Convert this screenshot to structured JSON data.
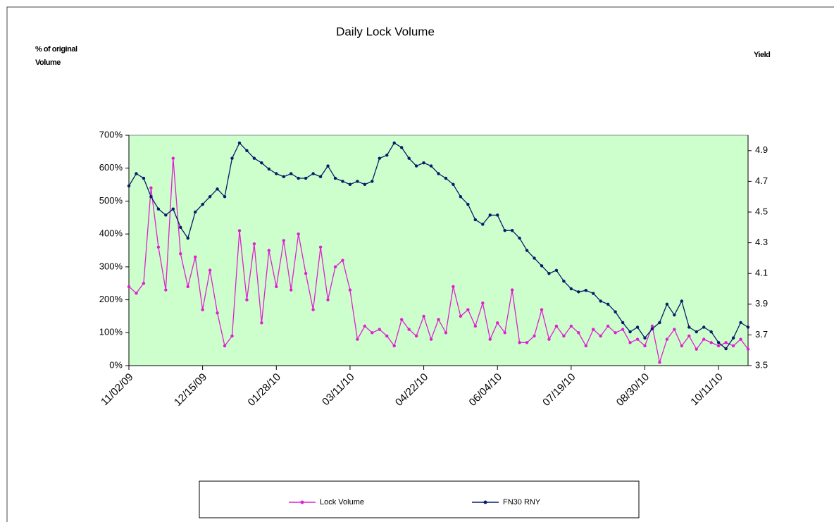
{
  "chart_data": {
    "type": "line",
    "title": "Daily Lock Volume",
    "ylabel": "% of original Volume",
    "y2label": "Yield",
    "categories": [
      "11/02/09",
      null,
      null,
      null,
      null,
      null,
      null,
      null,
      null,
      null,
      "12/15/09",
      null,
      null,
      null,
      null,
      null,
      null,
      null,
      null,
      null,
      "01/28/10",
      null,
      null,
      null,
      null,
      null,
      null,
      null,
      null,
      null,
      "03/11/10",
      null,
      null,
      null,
      null,
      null,
      null,
      null,
      null,
      null,
      "04/22/10",
      null,
      null,
      null,
      null,
      null,
      null,
      null,
      null,
      null,
      "06/04/10",
      null,
      null,
      null,
      null,
      null,
      null,
      null,
      null,
      null,
      "07/19/10",
      null,
      null,
      null,
      null,
      null,
      null,
      null,
      null,
      null,
      "08/30/10",
      null,
      null,
      null,
      null,
      null,
      null,
      null,
      null,
      null,
      "10/11/10",
      null,
      null,
      null,
      null
    ],
    "series": [
      {
        "name": "Lock Volume",
        "color": "#e020d0",
        "axis": "y",
        "values": [
          240,
          220,
          250,
          540,
          360,
          230,
          630,
          340,
          240,
          330,
          170,
          290,
          160,
          60,
          90,
          410,
          200,
          370,
          130,
          350,
          240,
          380,
          230,
          400,
          280,
          170,
          360,
          200,
          300,
          320,
          230,
          80,
          120,
          100,
          110,
          90,
          60,
          140,
          110,
          90,
          150,
          80,
          140,
          100,
          240,
          150,
          170,
          120,
          190,
          80,
          130,
          100,
          230,
          70,
          70,
          90,
          170,
          80,
          120,
          90,
          120,
          100,
          60,
          110,
          90,
          120,
          100,
          110,
          70,
          80,
          60,
          120,
          10,
          80,
          110,
          60,
          90,
          50,
          80,
          70,
          60,
          70,
          60,
          80,
          50
        ]
      },
      {
        "name": "FN30 RNY",
        "color": "#0a1a6a",
        "axis": "y2",
        "values": [
          4.67,
          4.75,
          4.72,
          4.6,
          4.52,
          4.48,
          4.52,
          4.4,
          4.33,
          4.5,
          4.55,
          4.6,
          4.65,
          4.6,
          4.85,
          4.95,
          4.9,
          4.85,
          4.82,
          4.78,
          4.75,
          4.73,
          4.75,
          4.72,
          4.72,
          4.75,
          4.73,
          4.8,
          4.72,
          4.7,
          4.68,
          4.7,
          4.68,
          4.7,
          4.85,
          4.87,
          4.95,
          4.92,
          4.85,
          4.8,
          4.82,
          4.8,
          4.75,
          4.72,
          4.68,
          4.6,
          4.55,
          4.45,
          4.42,
          4.48,
          4.48,
          4.38,
          4.38,
          4.33,
          4.25,
          4.2,
          4.15,
          4.1,
          4.12,
          4.05,
          4.0,
          3.98,
          3.99,
          3.97,
          3.92,
          3.9,
          3.85,
          3.78,
          3.72,
          3.75,
          3.68,
          3.74,
          3.78,
          3.9,
          3.83,
          3.92,
          3.75,
          3.72,
          3.75,
          3.72,
          3.65,
          3.61,
          3.68,
          3.78,
          3.75
        ]
      }
    ],
    "ylim": [
      0,
      700
    ],
    "yticks": [
      {
        "value": 0,
        "label": "0%"
      },
      {
        "value": 100,
        "label": "100%"
      },
      {
        "value": 200,
        "label": "200%"
      },
      {
        "value": 300,
        "label": "300%"
      },
      {
        "value": 400,
        "label": "400%"
      },
      {
        "value": 500,
        "label": "500%"
      },
      {
        "value": 600,
        "label": "600%"
      },
      {
        "value": 700,
        "label": "700%"
      }
    ],
    "y2lim": [
      3.5,
      5.0
    ],
    "y2ticks": [
      3.5,
      3.7,
      3.9,
      4.1,
      4.3,
      4.5,
      4.7,
      4.9
    ],
    "plot_background": "#ccffcc",
    "legend": "bottom"
  }
}
